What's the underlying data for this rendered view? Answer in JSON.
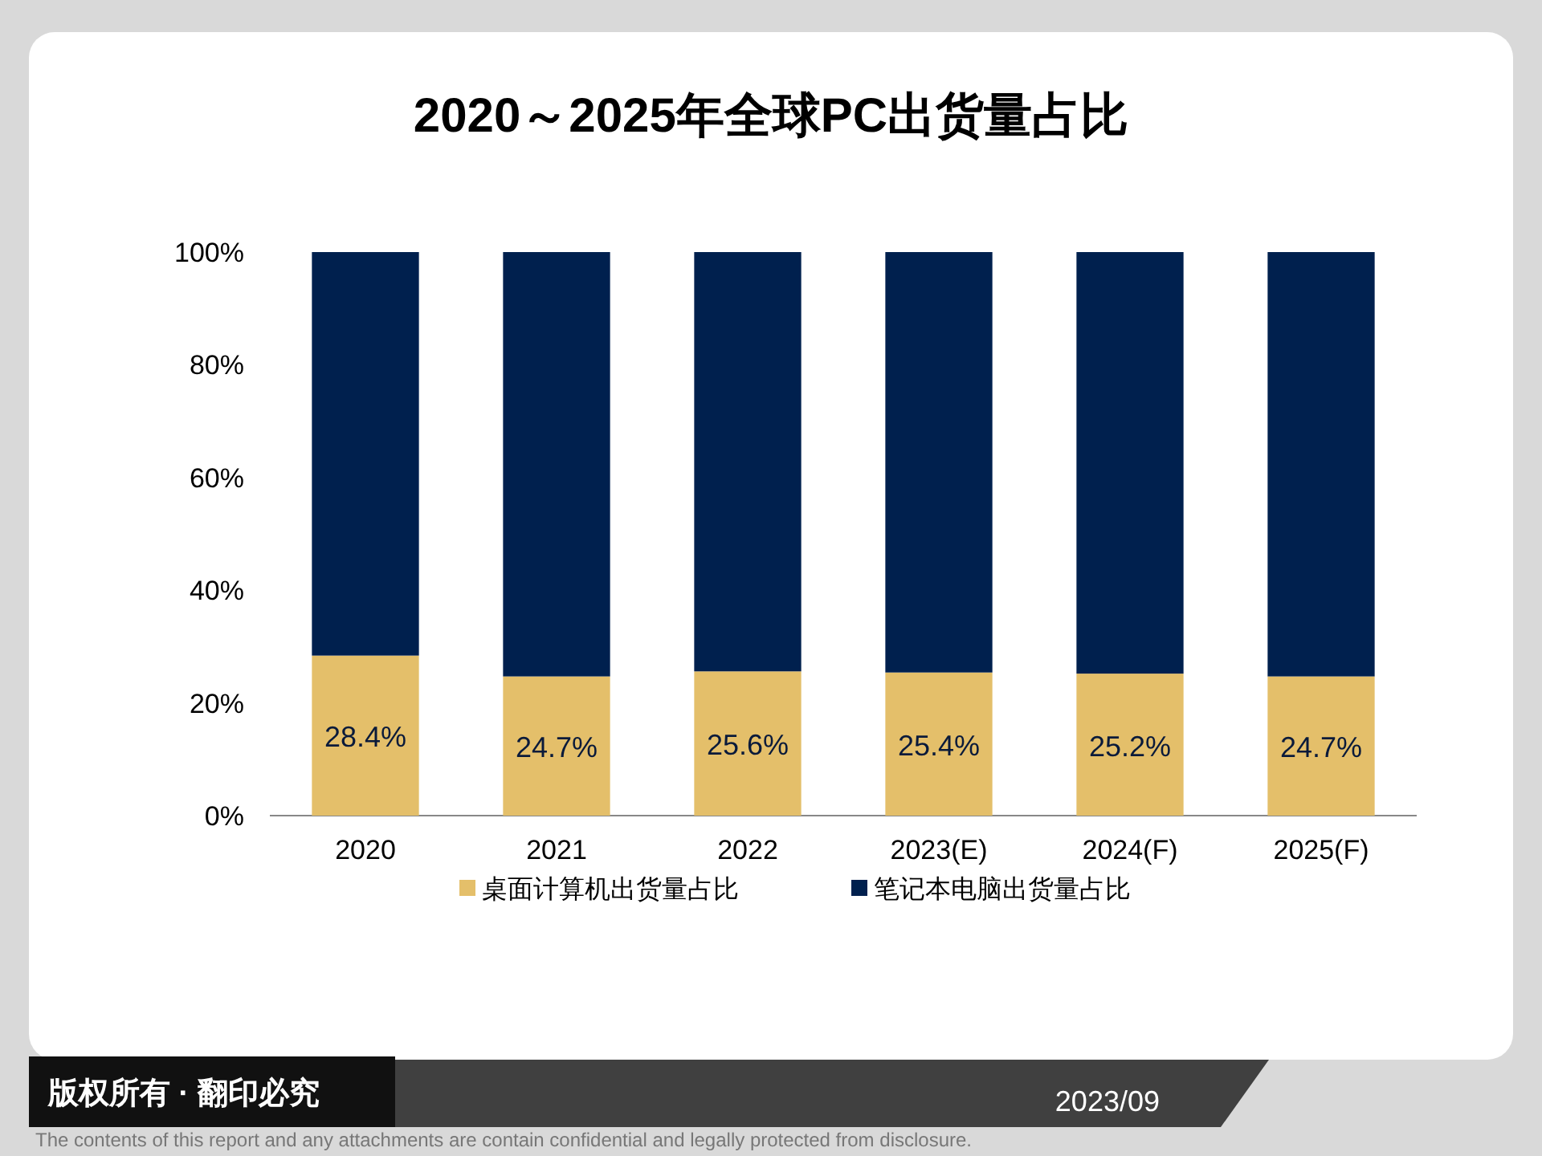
{
  "chart_data": {
    "type": "bar",
    "title": "2020～2025年全球PC出货量占比",
    "categories": [
      "2020",
      "2021",
      "2022",
      "2023(E)",
      "2024(F)",
      "2025(F)"
    ],
    "stacked": true,
    "series": [
      {
        "name": "桌面计算机出货量占比",
        "color": "#e4bf6a",
        "values": [
          28.4,
          24.7,
          25.6,
          25.4,
          25.2,
          24.7
        ],
        "value_labels": [
          "28.4%",
          "24.7%",
          "25.6%",
          "25.4%",
          "25.2%",
          "24.7%"
        ]
      },
      {
        "name": "笔记本电脑出货量占比",
        "color": "#00204e",
        "values": [
          71.6,
          75.3,
          74.4,
          74.6,
          74.8,
          75.3
        ]
      }
    ],
    "ylim": [
      0,
      100
    ],
    "yticks": [
      {
        "value": 0,
        "label": "0%"
      },
      {
        "value": 20,
        "label": "20%"
      },
      {
        "value": 40,
        "label": "40%"
      },
      {
        "value": 60,
        "label": "60%"
      },
      {
        "value": 80,
        "label": "80%"
      },
      {
        "value": 100,
        "label": "100%"
      }
    ],
    "grid": false,
    "legend": "bottom",
    "annotations": [
      "版权所有 · 翻印必究",
      "2023/09",
      "The contents of this report and any attachments are contain confidential and legally protected from disclosure."
    ]
  }
}
